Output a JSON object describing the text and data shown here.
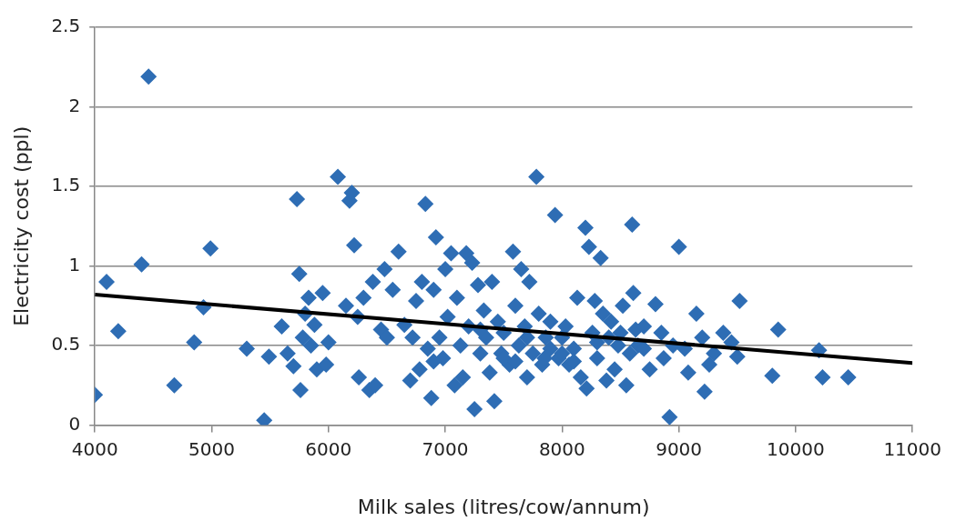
{
  "chart_data": {
    "type": "scatter",
    "xlabel": "Milk sales (litres/cow/annum)",
    "ylabel": "Electricity cost (ppl)",
    "xlim": [
      4000,
      11000
    ],
    "xticks": [
      4000,
      5000,
      6000,
      7000,
      8000,
      9000,
      10000,
      11000
    ],
    "ylim": [
      0,
      2.5
    ],
    "yticks": [
      0,
      0.5,
      1,
      1.5,
      2,
      2.5
    ],
    "grid": "y",
    "legend": false,
    "series": [
      {
        "marker": "diamond",
        "color": "#2e6db4",
        "x": [
          4000,
          4100,
          4200,
          4400,
          4460,
          4680,
          4850,
          4930,
          4990,
          5300,
          5450,
          5490,
          5600,
          5650,
          5700,
          5730,
          5750,
          5760,
          5780,
          5800,
          5830,
          5850,
          5880,
          5900,
          5950,
          5980,
          6000,
          6080,
          6150,
          6180,
          6200,
          6220,
          6250,
          6260,
          6300,
          6350,
          6380,
          6400,
          6450,
          6480,
          6500,
          6550,
          6600,
          6650,
          6700,
          6720,
          6750,
          6780,
          6800,
          6830,
          6850,
          6880,
          6900,
          6920,
          6950,
          6980,
          7000,
          7020,
          7050,
          7080,
          7100,
          7130,
          7150,
          7180,
          7200,
          7230,
          7250,
          7280,
          7300,
          7330,
          7350,
          7380,
          7400,
          7420,
          7450,
          7480,
          7500,
          7550,
          7580,
          7600,
          7630,
          7650,
          7680,
          7700,
          7720,
          7750,
          7780,
          7800,
          7830,
          7860,
          7900,
          7940,
          7970,
          8000,
          8030,
          8060,
          8100,
          8130,
          8160,
          8200,
          8210,
          8230,
          8260,
          8280,
          8300,
          8330,
          8350,
          8380,
          8400,
          8420,
          8450,
          8480,
          8520,
          8550,
          8580,
          8600,
          8610,
          8630,
          8650,
          8700,
          8750,
          8800,
          8850,
          8870,
          8920,
          8950,
          9000,
          9050,
          9080,
          9150,
          9200,
          9220,
          9260,
          9300,
          9380,
          9450,
          9500,
          9520,
          9800,
          9850,
          10200,
          10230,
          10450,
          7700,
          7900,
          8100,
          8300,
          7500,
          7300,
          6900,
          8000,
          8500,
          8700,
          7600,
          7850
        ],
        "values": [
          0.19,
          0.9,
          0.59,
          1.01,
          2.19,
          0.25,
          0.52,
          0.74,
          1.11,
          0.48,
          0.03,
          0.43,
          0.62,
          0.45,
          0.37,
          1.42,
          0.95,
          0.22,
          0.55,
          0.7,
          0.8,
          0.5,
          0.63,
          0.35,
          0.83,
          0.38,
          0.52,
          1.56,
          0.75,
          1.41,
          1.46,
          1.13,
          0.68,
          0.3,
          0.8,
          0.22,
          0.9,
          0.25,
          0.6,
          0.98,
          0.55,
          0.85,
          1.09,
          0.63,
          0.28,
          0.55,
          0.78,
          0.35,
          0.9,
          1.39,
          0.48,
          0.17,
          0.85,
          1.18,
          0.55,
          0.42,
          0.98,
          0.68,
          1.08,
          0.25,
          0.8,
          0.5,
          0.3,
          1.08,
          0.62,
          1.02,
          0.1,
          0.88,
          0.45,
          0.72,
          0.55,
          0.33,
          0.9,
          0.15,
          0.65,
          0.45,
          0.58,
          0.38,
          1.09,
          0.75,
          0.5,
          0.98,
          0.62,
          0.3,
          0.9,
          0.45,
          1.56,
          0.7,
          0.38,
          0.55,
          0.65,
          1.32,
          0.42,
          0.55,
          0.62,
          0.38,
          0.48,
          0.8,
          0.3,
          1.24,
          0.23,
          1.12,
          0.58,
          0.78,
          0.42,
          1.05,
          0.7,
          0.28,
          0.55,
          0.65,
          0.35,
          0.5,
          0.75,
          0.25,
          0.45,
          1.26,
          0.83,
          0.6,
          0.5,
          0.62,
          0.35,
          0.76,
          0.58,
          0.42,
          0.05,
          0.5,
          1.12,
          0.48,
          0.33,
          0.7,
          0.55,
          0.21,
          0.38,
          0.45,
          0.58,
          0.52,
          0.43,
          0.78,
          0.31,
          0.6,
          0.47,
          0.3,
          0.3,
          0.55,
          0.48,
          0.4,
          0.52,
          0.42,
          0.6,
          0.4,
          0.45,
          0.58,
          0.48,
          0.4,
          0.42
        ]
      },
      {
        "type": "line",
        "marker": "none",
        "line_style": "solid",
        "color": "#000000",
        "x": [
          4000,
          11000
        ],
        "values": [
          0.82,
          0.39
        ]
      }
    ]
  }
}
